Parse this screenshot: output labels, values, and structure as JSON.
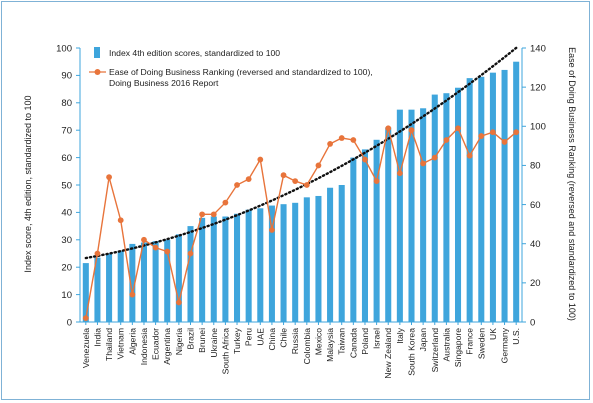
{
  "chart_data": {
    "type": "bar",
    "categories": [
      "Venezuela",
      "India",
      "Thailand",
      "Vietnam",
      "Algeria",
      "Indonesia",
      "Ecuador",
      "Argentina",
      "Nigeria",
      "Brazil",
      "Brunei",
      "Ukraine",
      "South Africa",
      "Turkey",
      "Peru",
      "UAE",
      "China",
      "Chile",
      "Russia",
      "Colombia",
      "Mexico",
      "Malaysia",
      "Taiwan",
      "Canada",
      "Poland",
      "Israel",
      "New Zealand",
      "Italy",
      "South Korea",
      "Japan",
      "Switzerland",
      "Australia",
      "Singapore",
      "France",
      "Sweden",
      "UK",
      "Germany",
      "U.S."
    ],
    "series": [
      {
        "name": "Index 4th edition scores, standardized to 100",
        "type": "bar",
        "axis": "left",
        "color": "#3ea5dc",
        "values": [
          21.5,
          23.5,
          25,
          26,
          28.5,
          29,
          29.5,
          30,
          32,
          35,
          38,
          38.5,
          38.5,
          39.5,
          41,
          41.5,
          42.5,
          43,
          43.5,
          45.5,
          46,
          49,
          50,
          60,
          63,
          66.5,
          71,
          77.5,
          77.5,
          78,
          83,
          83.5,
          85.5,
          89,
          89.5,
          91,
          92,
          95
        ]
      },
      {
        "name": "Ease of Doing Business Ranking (reversed and standardized to 100), Doing Business 2016 Report",
        "type": "line",
        "axis": "right",
        "color": "#e8743b",
        "values": [
          2,
          35,
          74,
          52,
          14,
          42,
          38,
          36,
          10,
          35,
          55,
          55,
          61,
          70,
          73,
          83,
          47,
          75,
          72,
          70,
          80,
          91,
          94,
          93,
          83,
          72,
          99,
          76,
          98,
          81,
          84,
          93,
          99,
          85,
          95,
          97,
          92,
          97
        ]
      }
    ],
    "trendline": {
      "style": "dotted",
      "color": "#111111"
    },
    "ylabel": "Index score, 4th edition, standardized to 100",
    "ylabel_right": "Ease of Doing Business Ranking (reversed and standardized to 100)",
    "ylim": [
      0,
      100
    ],
    "ylim_right": [
      0,
      140
    ],
    "yticks": [
      "0",
      "10",
      "20",
      "30",
      "40",
      "50",
      "60",
      "70",
      "80",
      "90",
      "100"
    ],
    "yticks_right": [
      "0",
      "20",
      "40",
      "60",
      "80",
      "100",
      "120",
      "140"
    ],
    "grid": false,
    "legend": {
      "position": "top-left"
    }
  }
}
